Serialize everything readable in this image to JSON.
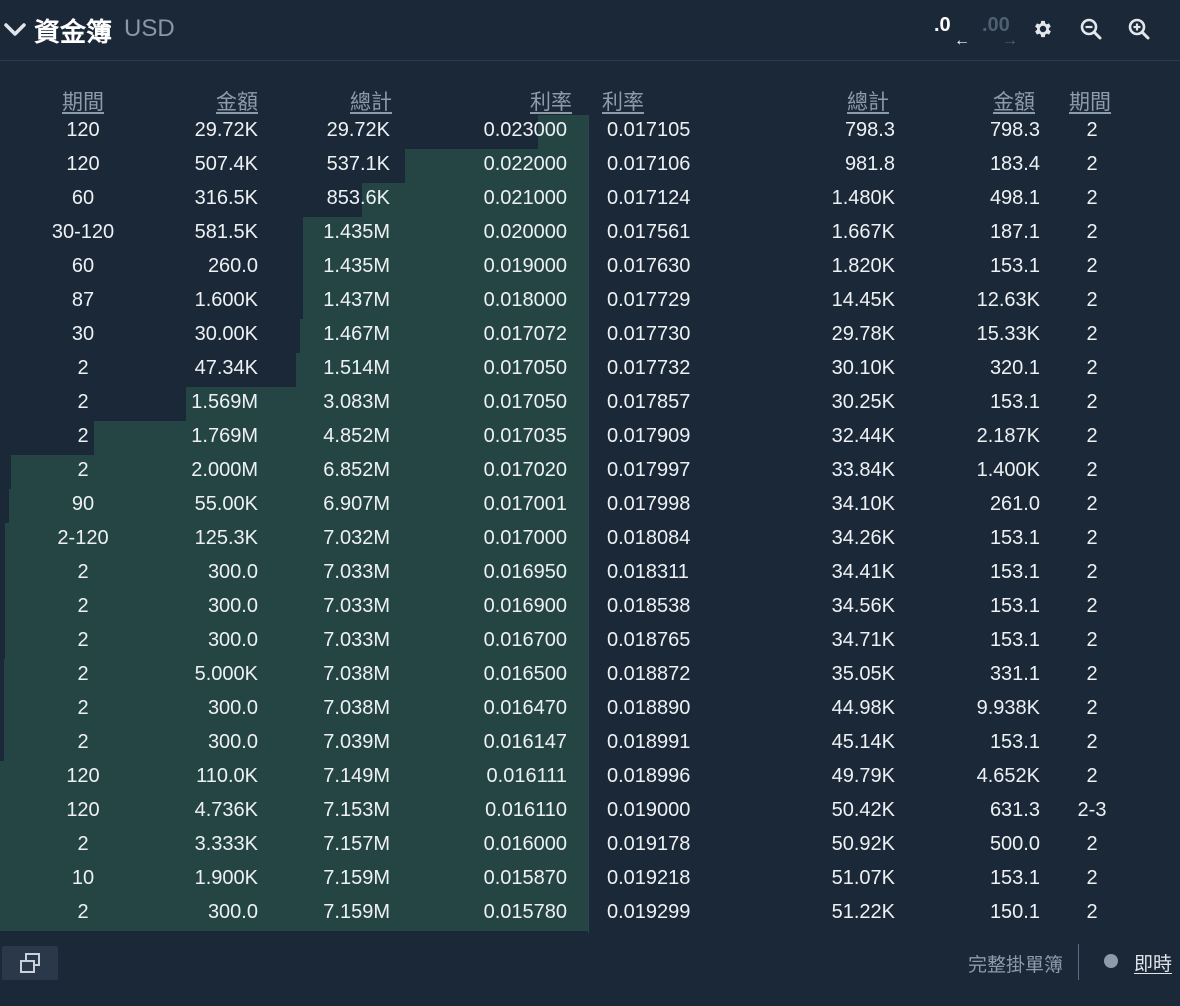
{
  "header": {
    "title": "資金簿",
    "currency": "USD",
    "decrease_precision": ".0",
    "increase_precision": ".00"
  },
  "columns": {
    "bid": {
      "period": "期間",
      "amount": "金額",
      "total": "總計",
      "rate": "利率"
    },
    "ask": {
      "rate": "利率",
      "total": "總計",
      "amount": "金額",
      "period": "期間"
    }
  },
  "bids": [
    {
      "period": "120",
      "amount": "29.72K",
      "total": "29.72K",
      "rate": "0.023000"
    },
    {
      "period": "120",
      "amount": "507.4K",
      "total": "537.1K",
      "rate": "0.022000"
    },
    {
      "period": "60",
      "amount": "316.5K",
      "total": "853.6K",
      "rate": "0.021000"
    },
    {
      "period": "30-120",
      "amount": "581.5K",
      "total": "1.435M",
      "rate": "0.020000"
    },
    {
      "period": "60",
      "amount": "260.0",
      "total": "1.435M",
      "rate": "0.019000"
    },
    {
      "period": "87",
      "amount": "1.600K",
      "total": "1.437M",
      "rate": "0.018000"
    },
    {
      "period": "30",
      "amount": "30.00K",
      "total": "1.467M",
      "rate": "0.017072"
    },
    {
      "period": "2",
      "amount": "47.34K",
      "total": "1.514M",
      "rate": "0.017050"
    },
    {
      "period": "2",
      "amount": "1.569M",
      "total": "3.083M",
      "rate": "0.017050"
    },
    {
      "period": "2",
      "amount": "1.769M",
      "total": "4.852M",
      "rate": "0.017035"
    },
    {
      "period": "2",
      "amount": "2.000M",
      "total": "6.852M",
      "rate": "0.017020"
    },
    {
      "period": "90",
      "amount": "55.00K",
      "total": "6.907M",
      "rate": "0.017001"
    },
    {
      "period": "2-120",
      "amount": "125.3K",
      "total": "7.032M",
      "rate": "0.017000"
    },
    {
      "period": "2",
      "amount": "300.0",
      "total": "7.033M",
      "rate": "0.016950"
    },
    {
      "period": "2",
      "amount": "300.0",
      "total": "7.033M",
      "rate": "0.016900"
    },
    {
      "period": "2",
      "amount": "300.0",
      "total": "7.033M",
      "rate": "0.016700"
    },
    {
      "period": "2",
      "amount": "5.000K",
      "total": "7.038M",
      "rate": "0.016500"
    },
    {
      "period": "2",
      "amount": "300.0",
      "total": "7.038M",
      "rate": "0.016470"
    },
    {
      "period": "2",
      "amount": "300.0",
      "total": "7.039M",
      "rate": "0.016147"
    },
    {
      "period": "120",
      "amount": "110.0K",
      "total": "7.149M",
      "rate": "0.016111"
    },
    {
      "period": "120",
      "amount": "4.736K",
      "total": "7.153M",
      "rate": "0.016110"
    },
    {
      "period": "2",
      "amount": "3.333K",
      "total": "7.157M",
      "rate": "0.016000"
    },
    {
      "period": "10",
      "amount": "1.900K",
      "total": "7.159M",
      "rate": "0.015870"
    },
    {
      "period": "2",
      "amount": "300.0",
      "total": "7.159M",
      "rate": "0.015780"
    }
  ],
  "asks": [
    {
      "rate": "0.017105",
      "total": "798.3",
      "amount": "798.3",
      "period": "2"
    },
    {
      "rate": "0.017106",
      "total": "981.8",
      "amount": "183.4",
      "period": "2"
    },
    {
      "rate": "0.017124",
      "total": "1.480K",
      "amount": "498.1",
      "period": "2"
    },
    {
      "rate": "0.017561",
      "total": "1.667K",
      "amount": "187.1",
      "period": "2"
    },
    {
      "rate": "0.017630",
      "total": "1.820K",
      "amount": "153.1",
      "period": "2"
    },
    {
      "rate": "0.017729",
      "total": "14.45K",
      "amount": "12.63K",
      "period": "2"
    },
    {
      "rate": "0.017730",
      "total": "29.78K",
      "amount": "15.33K",
      "period": "2"
    },
    {
      "rate": "0.017732",
      "total": "30.10K",
      "amount": "320.1",
      "period": "2"
    },
    {
      "rate": "0.017857",
      "total": "30.25K",
      "amount": "153.1",
      "period": "2"
    },
    {
      "rate": "0.017909",
      "total": "32.44K",
      "amount": "2.187K",
      "period": "2"
    },
    {
      "rate": "0.017997",
      "total": "33.84K",
      "amount": "1.400K",
      "period": "2"
    },
    {
      "rate": "0.017998",
      "total": "34.10K",
      "amount": "261.0",
      "period": "2"
    },
    {
      "rate": "0.018084",
      "total": "34.26K",
      "amount": "153.1",
      "period": "2"
    },
    {
      "rate": "0.018311",
      "total": "34.41K",
      "amount": "153.1",
      "period": "2"
    },
    {
      "rate": "0.018538",
      "total": "34.56K",
      "amount": "153.1",
      "period": "2"
    },
    {
      "rate": "0.018765",
      "total": "34.71K",
      "amount": "153.1",
      "period": "2"
    },
    {
      "rate": "0.018872",
      "total": "35.05K",
      "amount": "331.1",
      "period": "2"
    },
    {
      "rate": "0.018890",
      "total": "44.98K",
      "amount": "9.938K",
      "period": "2"
    },
    {
      "rate": "0.018991",
      "total": "45.14K",
      "amount": "153.1",
      "period": "2"
    },
    {
      "rate": "0.018996",
      "total": "49.79K",
      "amount": "4.652K",
      "period": "2"
    },
    {
      "rate": "0.019000",
      "total": "50.42K",
      "amount": "631.3",
      "period": "2-3"
    },
    {
      "rate": "0.019178",
      "total": "50.92K",
      "amount": "500.0",
      "period": "2"
    },
    {
      "rate": "0.019218",
      "total": "51.07K",
      "amount": "153.1",
      "period": "2"
    },
    {
      "rate": "0.019299",
      "total": "51.22K",
      "amount": "150.1",
      "period": "2"
    }
  ],
  "footer": {
    "full_book": "完整掛單簿",
    "live": "即時"
  },
  "icons": [
    "chevron-down-icon",
    "settings-icon",
    "zoom-out-icon",
    "zoom-in-icon",
    "popout-icon",
    "arrow-left-icon",
    "arrow-right-icon"
  ],
  "colors": {
    "background": "#1b2838",
    "bid_depth": "#254545",
    "ask_depth": "#1e2f3a",
    "text": "#eef1f4",
    "muted": "#8e9ba8"
  }
}
